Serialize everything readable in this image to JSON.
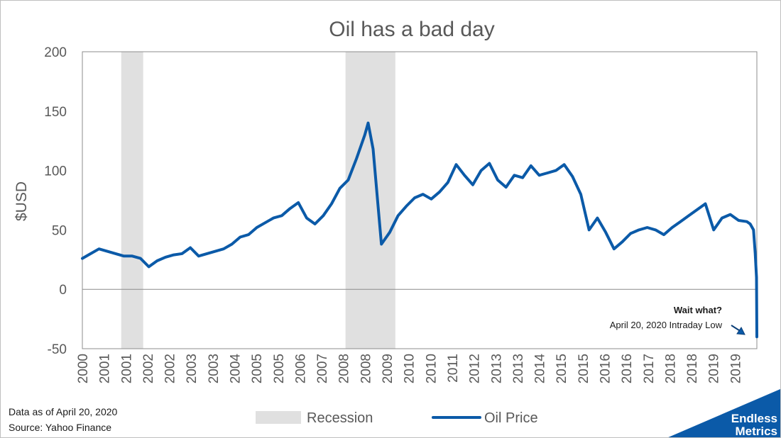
{
  "chart_data": {
    "type": "line",
    "title": "Oil has a bad day",
    "ylabel": "$USD",
    "xlabel": "",
    "ylim": [
      -50,
      200
    ],
    "yticks": [
      -50,
      0,
      50,
      100,
      150,
      200
    ],
    "x_tick_labels": [
      "2000",
      "2001",
      "2001",
      "2002",
      "2002",
      "2003",
      "2003",
      "2004",
      "2005",
      "2005",
      "2006",
      "2007",
      "2008",
      "2008",
      "2009",
      "2010",
      "2010",
      "2011",
      "2012",
      "2013",
      "2013",
      "2014",
      "2015",
      "2015",
      "2016",
      "2016",
      "2017",
      "2018",
      "2018",
      "2019",
      "2019"
    ],
    "grid": false,
    "zero_line": true,
    "legend_position": "bottom",
    "series": [
      {
        "name": "Oil Price",
        "color": "#0b5aa8",
        "x": [
          2000.0,
          2000.25,
          2000.5,
          2000.75,
          2001.0,
          2001.25,
          2001.5,
          2001.75,
          2002.0,
          2002.25,
          2002.5,
          2002.75,
          2003.0,
          2003.25,
          2003.5,
          2003.75,
          2004.0,
          2004.25,
          2004.5,
          2004.75,
          2005.0,
          2005.25,
          2005.5,
          2005.75,
          2006.0,
          2006.25,
          2006.5,
          2006.75,
          2007.0,
          2007.25,
          2007.5,
          2007.75,
          2008.0,
          2008.25,
          2008.5,
          2008.6,
          2008.75,
          2008.9,
          2009.0,
          2009.25,
          2009.5,
          2009.75,
          2010.0,
          2010.25,
          2010.5,
          2010.75,
          2011.0,
          2011.25,
          2011.5,
          2011.75,
          2012.0,
          2012.25,
          2012.5,
          2012.75,
          2013.0,
          2013.25,
          2013.5,
          2013.75,
          2014.0,
          2014.25,
          2014.5,
          2014.75,
          2015.0,
          2015.25,
          2015.5,
          2015.75,
          2016.0,
          2016.25,
          2016.5,
          2016.75,
          2017.0,
          2017.25,
          2017.5,
          2017.75,
          2018.0,
          2018.25,
          2018.5,
          2018.75,
          2019.0,
          2019.25,
          2019.5,
          2019.75,
          2020.0,
          2020.1,
          2020.2,
          2020.25,
          2020.27,
          2020.29,
          2020.3
        ],
        "values": [
          26,
          30,
          34,
          32,
          30,
          28,
          28,
          26,
          19,
          24,
          27,
          29,
          30,
          35,
          28,
          30,
          32,
          34,
          38,
          44,
          46,
          52,
          56,
          60,
          62,
          68,
          73,
          60,
          55,
          62,
          72,
          85,
          92,
          110,
          130,
          140,
          118,
          70,
          38,
          48,
          62,
          70,
          77,
          80,
          76,
          82,
          90,
          105,
          96,
          88,
          100,
          106,
          92,
          86,
          96,
          94,
          104,
          96,
          98,
          100,
          105,
          95,
          80,
          50,
          60,
          48,
          34,
          40,
          47,
          50,
          52,
          50,
          46,
          52,
          57,
          62,
          67,
          72,
          50,
          60,
          63,
          58,
          57,
          55,
          50,
          30,
          20,
          10,
          -40
        ]
      }
    ],
    "recession_bands": [
      [
        2001.17,
        2001.83
      ],
      [
        2007.92,
        2009.42
      ]
    ],
    "recession_color": "#e0e0e0",
    "recession_label": "Recession",
    "annotation": {
      "title": "Wait what?",
      "text": "April 20, 2020 Intraday Low",
      "x": 2020.3,
      "y": -40
    }
  },
  "notes": {
    "line1": "Data as of April 20, 2020",
    "line2": "Source: Yahoo Finance"
  },
  "brand": {
    "line1": "Endless",
    "line2": "Metrics",
    "color": "#0b5aa8"
  }
}
